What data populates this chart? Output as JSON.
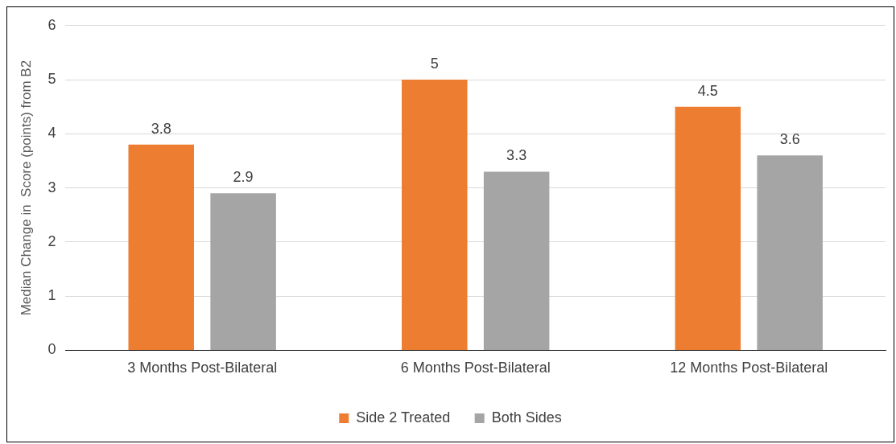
{
  "chart_data": {
    "type": "bar",
    "ylabel": "Median Change in  Score (points) from B2",
    "categories": [
      "3 Months Post-Bilateral",
      "6 Months Post-Bilateral",
      "12 Months Post-Bilateral"
    ],
    "series": [
      {
        "name": "Side 2 Treated",
        "color": "#ed7d31",
        "values": [
          3.8,
          5,
          4.5
        ]
      },
      {
        "name": "Both Sides",
        "color": "#a5a5a5",
        "values": [
          2.9,
          3.3,
          3.6
        ]
      }
    ],
    "ylim": [
      0,
      6
    ],
    "yticks": [
      0,
      1,
      2,
      3,
      4,
      5,
      6
    ],
    "grid": "y",
    "legend": "bottom",
    "data_labels": true
  }
}
